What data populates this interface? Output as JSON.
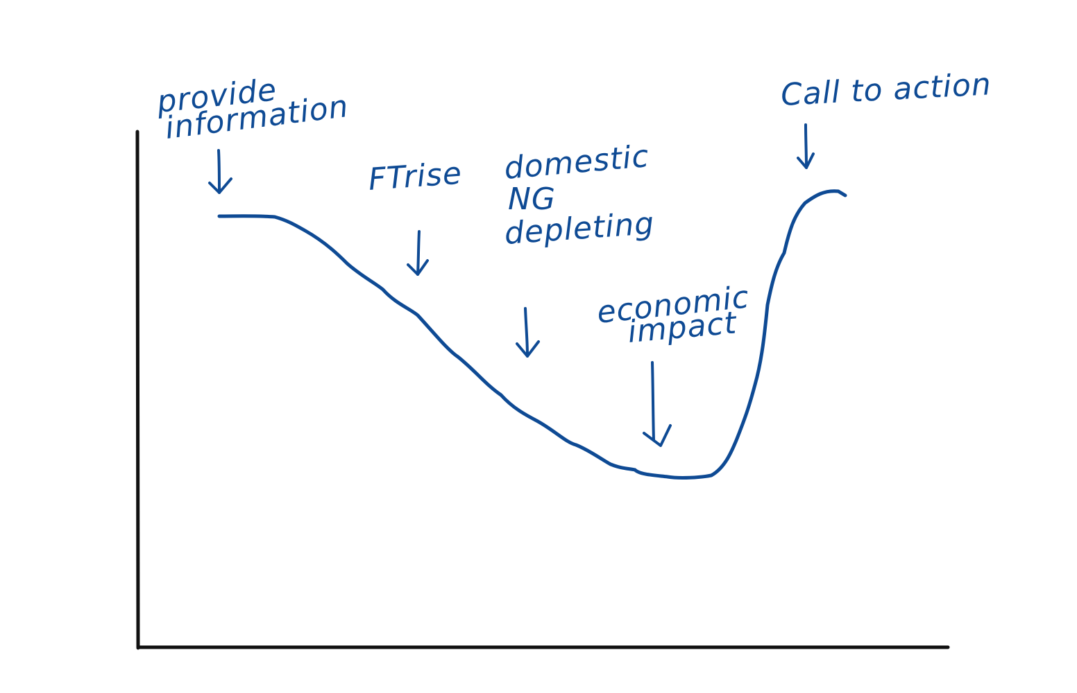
{
  "colors": {
    "ink": "#0e4a94",
    "axis": "#111111",
    "background": "#ffffff"
  },
  "labels": {
    "provide_line1": "provide",
    "provide_line2": "information",
    "ft_rise": "FTrise",
    "domestic_line1": "domestic",
    "domestic_line2": "NG",
    "domestic_line3": "depleting",
    "economic_line1": "economic",
    "economic_line2": "impact",
    "call_to_action": "Call to action"
  }
}
